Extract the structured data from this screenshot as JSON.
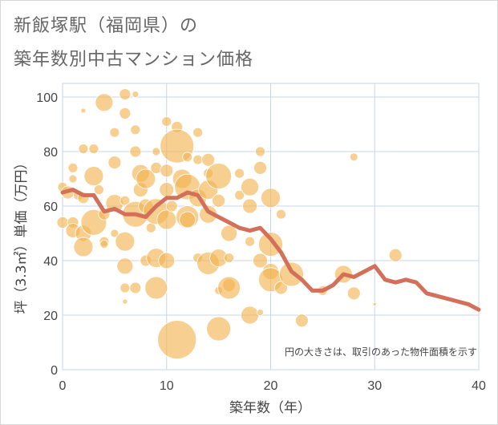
{
  "title_lines": [
    "新飯塚駅（福岡県）の",
    "築年数別中古マンション価格"
  ],
  "chart_data": {
    "type": "scatter",
    "xlabel": "築年数（年）",
    "ylabel": "坪（3.3㎡）単価（万円）",
    "xlim": [
      0,
      40
    ],
    "ylim": [
      0,
      105
    ],
    "xticks": [
      0,
      10,
      20,
      30,
      40
    ],
    "yticks": [
      0,
      20,
      40,
      60,
      80,
      100
    ],
    "grid": true,
    "note": "円の大きさは、取引のあった物件面積を示す",
    "colors": {
      "bubble": "#f2b554",
      "line": "#d4705a",
      "grid": "#c9d6e3"
    },
    "bubbles": [
      {
        "x": 0,
        "y": 54,
        "r": 7
      },
      {
        "x": 0,
        "y": 67,
        "r": 6
      },
      {
        "x": 0.5,
        "y": 65,
        "r": 8
      },
      {
        "x": 1,
        "y": 74,
        "r": 6
      },
      {
        "x": 1,
        "y": 70,
        "r": 5
      },
      {
        "x": 1,
        "y": 54,
        "r": 7
      },
      {
        "x": 1,
        "y": 51,
        "r": 9
      },
      {
        "x": 1.5,
        "y": 64,
        "r": 6
      },
      {
        "x": 2,
        "y": 95,
        "r": 3
      },
      {
        "x": 2,
        "y": 81,
        "r": 6
      },
      {
        "x": 2,
        "y": 63,
        "r": 7
      },
      {
        "x": 2,
        "y": 50,
        "r": 10
      },
      {
        "x": 2,
        "y": 45,
        "r": 12
      },
      {
        "x": 3,
        "y": 81,
        "r": 6
      },
      {
        "x": 3,
        "y": 71,
        "r": 12
      },
      {
        "x": 3,
        "y": 54,
        "r": 16
      },
      {
        "x": 3.5,
        "y": 66,
        "r": 6
      },
      {
        "x": 4,
        "y": 98,
        "r": 11
      },
      {
        "x": 4,
        "y": 57,
        "r": 7
      },
      {
        "x": 4,
        "y": 47,
        "r": 6
      },
      {
        "x": 4,
        "y": 46,
        "r": 5
      },
      {
        "x": 5,
        "y": 87,
        "r": 6
      },
      {
        "x": 5,
        "y": 76,
        "r": 8
      },
      {
        "x": 5,
        "y": 61,
        "r": 11
      },
      {
        "x": 5,
        "y": 50,
        "r": 5
      },
      {
        "x": 6,
        "y": 101,
        "r": 7
      },
      {
        "x": 6,
        "y": 94,
        "r": 7
      },
      {
        "x": 6,
        "y": 62,
        "r": 6
      },
      {
        "x": 6,
        "y": 47,
        "r": 12
      },
      {
        "x": 6,
        "y": 38,
        "r": 10
      },
      {
        "x": 6,
        "y": 30,
        "r": 6
      },
      {
        "x": 6,
        "y": 25,
        "r": 3
      },
      {
        "x": 7,
        "y": 101,
        "r": 4
      },
      {
        "x": 7,
        "y": 88,
        "r": 6
      },
      {
        "x": 7,
        "y": 80,
        "r": 7
      },
      {
        "x": 7,
        "y": 57,
        "r": 16
      },
      {
        "x": 7,
        "y": 30,
        "r": 7
      },
      {
        "x": 7.5,
        "y": 72,
        "r": 11
      },
      {
        "x": 7.5,
        "y": 66,
        "r": 9
      },
      {
        "x": 8,
        "y": 70,
        "r": 12
      },
      {
        "x": 8,
        "y": 60,
        "r": 9
      },
      {
        "x": 8,
        "y": 40,
        "r": 7
      },
      {
        "x": 8.5,
        "y": 52,
        "r": 6
      },
      {
        "x": 9,
        "y": 80,
        "r": 5
      },
      {
        "x": 9,
        "y": 74,
        "r": 7
      },
      {
        "x": 9,
        "y": 58,
        "r": 16
      },
      {
        "x": 9,
        "y": 41,
        "r": 12
      },
      {
        "x": 9,
        "y": 30,
        "r": 14
      },
      {
        "x": 10,
        "y": 91,
        "r": 6
      },
      {
        "x": 10,
        "y": 73,
        "r": 8
      },
      {
        "x": 10,
        "y": 66,
        "r": 9
      },
      {
        "x": 10,
        "y": 55,
        "r": 12
      },
      {
        "x": 10,
        "y": 40,
        "r": 10
      },
      {
        "x": 10.5,
        "y": 60,
        "r": 7
      },
      {
        "x": 11,
        "y": 89,
        "r": 7
      },
      {
        "x": 11,
        "y": 82,
        "r": 21
      },
      {
        "x": 11,
        "y": 11,
        "r": 24
      },
      {
        "x": 11.5,
        "y": 70,
        "r": 12
      },
      {
        "x": 12,
        "y": 78,
        "r": 6
      },
      {
        "x": 12,
        "y": 67,
        "r": 16
      },
      {
        "x": 12,
        "y": 56,
        "r": 14
      },
      {
        "x": 12,
        "y": 55,
        "r": 10
      },
      {
        "x": 13,
        "y": 87,
        "r": 6
      },
      {
        "x": 13,
        "y": 77,
        "r": 6
      },
      {
        "x": 13,
        "y": 63,
        "r": 11
      },
      {
        "x": 13,
        "y": 41,
        "r": 6
      },
      {
        "x": 14,
        "y": 77,
        "r": 8
      },
      {
        "x": 14,
        "y": 72,
        "r": 6
      },
      {
        "x": 14,
        "y": 66,
        "r": 12
      },
      {
        "x": 14,
        "y": 57,
        "r": 11
      },
      {
        "x": 14,
        "y": 39,
        "r": 14
      },
      {
        "x": 15,
        "y": 71,
        "r": 16
      },
      {
        "x": 15,
        "y": 62,
        "r": 8
      },
      {
        "x": 15,
        "y": 41,
        "r": 11
      },
      {
        "x": 15,
        "y": 29,
        "r": 5
      },
      {
        "x": 15,
        "y": 15,
        "r": 15
      },
      {
        "x": 16,
        "y": 50,
        "r": 10
      },
      {
        "x": 16,
        "y": 41,
        "r": 6
      },
      {
        "x": 16,
        "y": 31,
        "r": 8
      },
      {
        "x": 16,
        "y": 30,
        "r": 14
      },
      {
        "x": 17,
        "y": 72,
        "r": 6
      },
      {
        "x": 17,
        "y": 64,
        "r": 6
      },
      {
        "x": 18,
        "y": 67,
        "r": 11
      },
      {
        "x": 18,
        "y": 60,
        "r": 9
      },
      {
        "x": 18,
        "y": 47,
        "r": 6
      },
      {
        "x": 18,
        "y": 20,
        "r": 11
      },
      {
        "x": 19,
        "y": 80,
        "r": 6
      },
      {
        "x": 19,
        "y": 74,
        "r": 8
      },
      {
        "x": 19,
        "y": 40,
        "r": 9
      },
      {
        "x": 19,
        "y": 21,
        "r": 4
      },
      {
        "x": 20,
        "y": 63,
        "r": 12
      },
      {
        "x": 20,
        "y": 46,
        "r": 15
      },
      {
        "x": 20,
        "y": 36,
        "r": 10
      },
      {
        "x": 20,
        "y": 33,
        "r": 15
      },
      {
        "x": 21,
        "y": 57,
        "r": 6
      },
      {
        "x": 21,
        "y": 30,
        "r": 8
      },
      {
        "x": 22,
        "y": 35,
        "r": 15
      },
      {
        "x": 23,
        "y": 18,
        "r": 8
      },
      {
        "x": 25,
        "y": 29,
        "r": 6
      },
      {
        "x": 27,
        "y": 35,
        "r": 11
      },
      {
        "x": 28,
        "y": 78,
        "r": 5
      },
      {
        "x": 28,
        "y": 28,
        "r": 8
      },
      {
        "x": 30,
        "y": 24,
        "r": 2
      },
      {
        "x": 32,
        "y": 42,
        "r": 8
      }
    ],
    "line": {
      "x": [
        0,
        1,
        2,
        3,
        4,
        5,
        6,
        7,
        8,
        9,
        10,
        11,
        12,
        13,
        14,
        15,
        16,
        17,
        18,
        19,
        20,
        21,
        22,
        23,
        24,
        25,
        26,
        27,
        28,
        29,
        30,
        31,
        32,
        33,
        34,
        35,
        36,
        37,
        38,
        39,
        40
      ],
      "y": [
        65,
        66,
        64,
        64,
        58,
        59,
        57,
        57,
        56,
        60,
        63,
        63,
        65,
        64,
        58,
        56,
        54,
        52,
        51,
        52,
        48,
        43,
        36,
        33,
        29,
        29,
        31,
        35,
        34,
        36,
        38,
        33,
        32,
        33,
        32,
        28,
        27,
        26,
        25,
        24,
        22
      ]
    }
  }
}
